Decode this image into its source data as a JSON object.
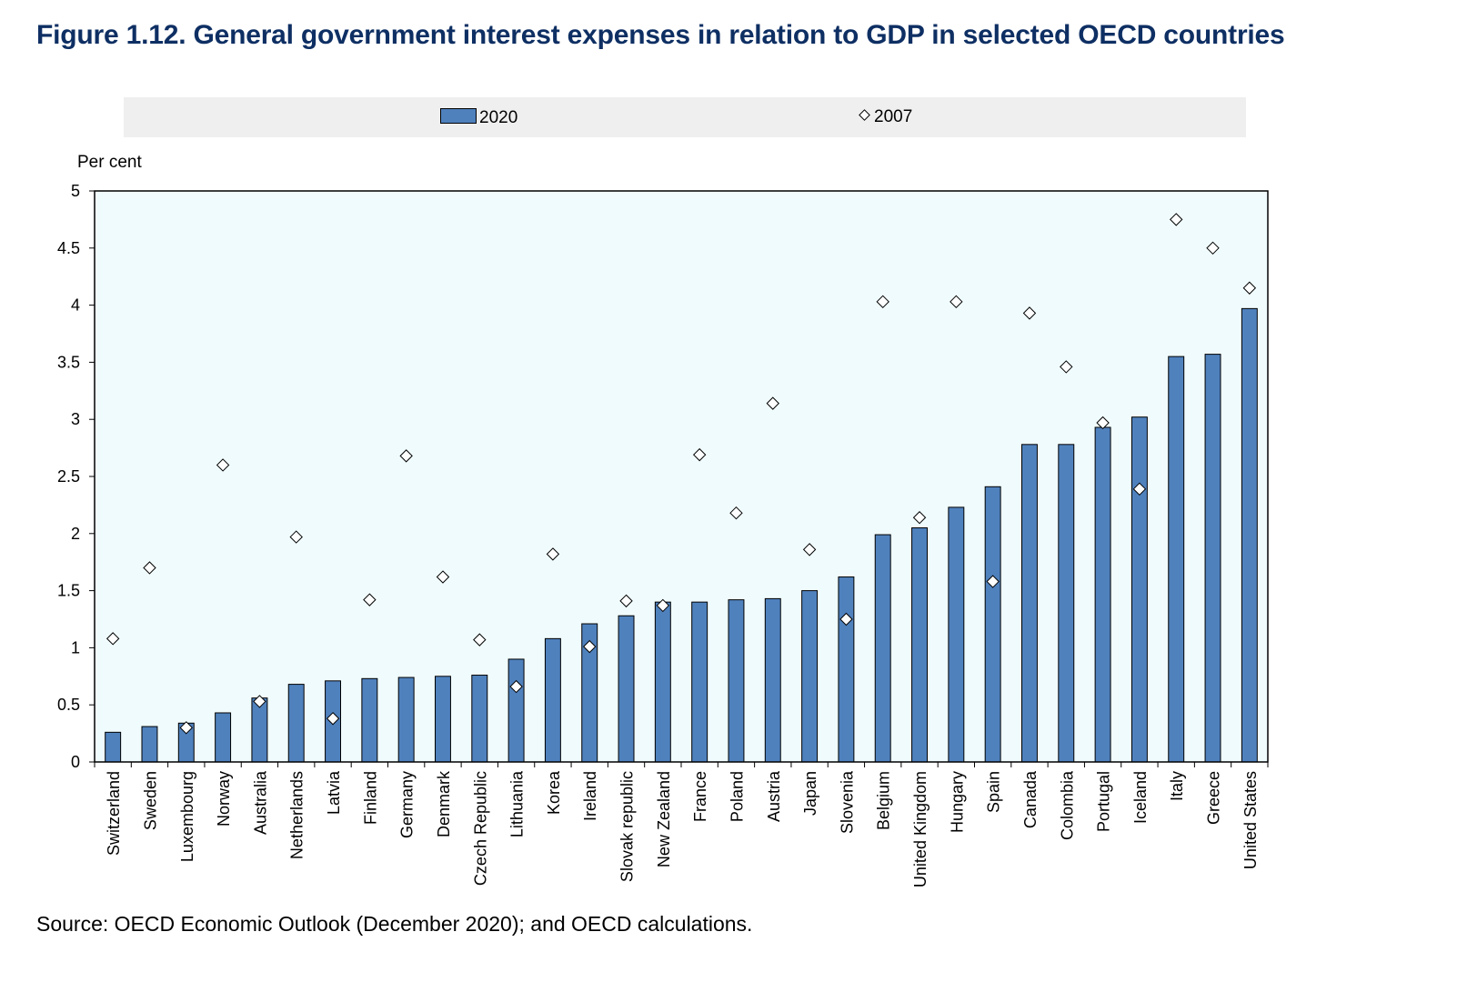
{
  "figure": {
    "title": "Figure 1.12. General government interest expenses in relation to GDP in selected OECD countries",
    "source": "Source: OECD Economic Outlook (December 2020); and OECD calculations."
  },
  "colors": {
    "bar_fill": "#4f81bd",
    "plot_background": "#f0fbfd",
    "title": "#0e2f63",
    "legend_background": "#efefef"
  },
  "chart_data": {
    "type": "bar",
    "title": "Figure 1.12. General government interest expenses in relation to GDP in selected OECD countries",
    "ylabel": "Per cent",
    "xlabel": "",
    "ylim": [
      0,
      5
    ],
    "yticks": [
      0,
      0.5,
      1,
      1.5,
      2,
      2.5,
      3,
      3.5,
      4,
      4.5,
      5
    ],
    "grid": false,
    "legend_position": "top",
    "categories": [
      "Switzerland",
      "Sweden",
      "Luxembourg",
      "Norway",
      "Australia",
      "Netherlands",
      "Latvia",
      "Finland",
      "Germany",
      "Denmark",
      "Czech Republic",
      "Lithuania",
      "Korea",
      "Ireland",
      "Slovak republic",
      "New Zealand",
      "France",
      "Poland",
      "Austria",
      "Japan",
      "Slovenia",
      "Belgium",
      "United Kingdom",
      "Hungary",
      "Spain",
      "Canada",
      "Colombia",
      "Portugal",
      "Iceland",
      "Italy",
      "Greece",
      "United States"
    ],
    "series": [
      {
        "name": "2020",
        "mark": "bar",
        "values": [
          0.26,
          0.31,
          0.34,
          0.43,
          0.56,
          0.68,
          0.71,
          0.73,
          0.74,
          0.75,
          0.76,
          0.9,
          1.08,
          1.21,
          1.28,
          1.4,
          1.4,
          1.42,
          1.43,
          1.5,
          1.62,
          1.99,
          2.05,
          2.23,
          2.41,
          2.78,
          2.78,
          2.93,
          3.02,
          3.55,
          3.57,
          3.97
        ]
      },
      {
        "name": "2007",
        "mark": "diamond",
        "values": [
          1.08,
          1.7,
          0.3,
          2.6,
          0.53,
          1.97,
          0.38,
          1.42,
          2.68,
          1.62,
          1.07,
          0.66,
          1.82,
          1.01,
          1.41,
          1.37,
          2.69,
          2.18,
          3.14,
          1.86,
          1.25,
          4.03,
          2.14,
          4.03,
          1.58,
          3.93,
          3.46,
          2.97,
          2.39,
          4.75,
          4.5,
          4.15
        ]
      }
    ]
  }
}
